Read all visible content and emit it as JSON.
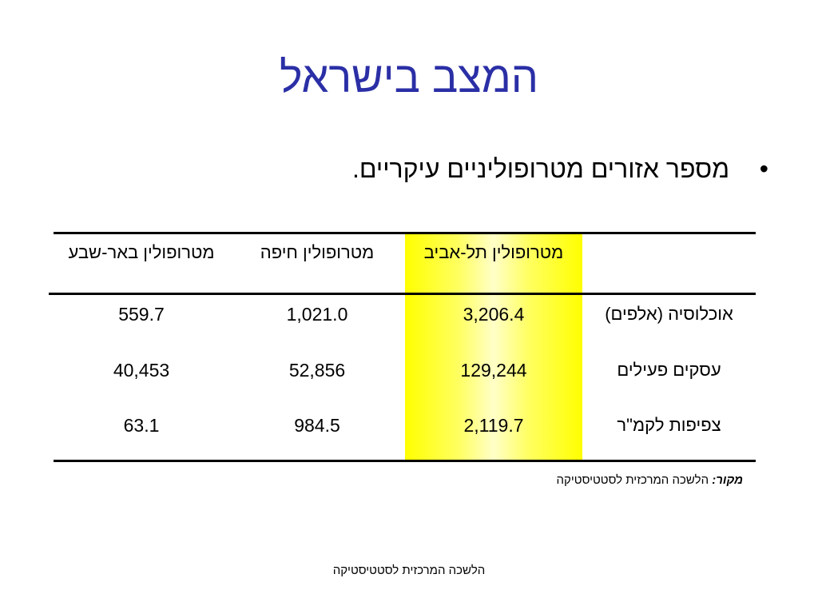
{
  "slide": {
    "title": "המצב בישראל",
    "bullet": {
      "symbol": "•",
      "text": "מספר אזורים מטרופוליניים עיקריים."
    },
    "table": {
      "headers": {
        "label": "",
        "tel_aviv": "מטרופולין תל-אביב",
        "haifa": "מטרופולין חיפה",
        "beer_sheva": "מטרופולין באר-שבע"
      },
      "rows": [
        {
          "label": "אוכלוסיה (אלפים)",
          "tel_aviv": "3,206.4",
          "haifa": "1,021.0",
          "beer_sheva": "559.7"
        },
        {
          "label": "עסקים פעילים",
          "tel_aviv": "129,244",
          "haifa": "52,856",
          "beer_sheva": "40,453"
        },
        {
          "label": "צפיפות לקמ\"ר",
          "tel_aviv": "2,119.7",
          "haifa": "984.5",
          "beer_sheva": "63.1"
        }
      ],
      "highlight_color": "#ffff00"
    },
    "source": {
      "label": "מקור:",
      "text": "הלשכה המרכזית לסטטיסטיקה"
    },
    "footer": "הלשכה המרכזית לסטטיסטיקה",
    "colors": {
      "title": "#2b2fa6",
      "text": "#000000"
    }
  }
}
